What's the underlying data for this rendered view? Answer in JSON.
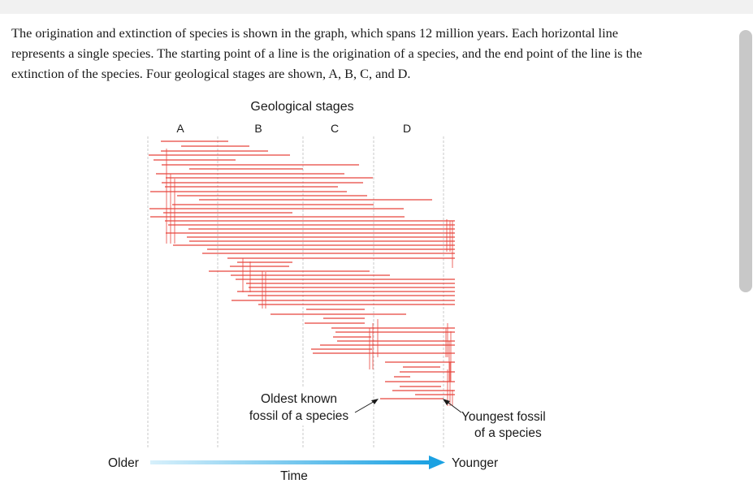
{
  "intro": {
    "line1": "The origination and extinction of species is shown in the graph, which spans 12 million years. Each horizontal line",
    "line2": "represents a single species. The starting point of a line is the origination of a species, and the end point of the line is the",
    "line3": "extinction of the species. Four geological stages are shown, A, B, C, and D."
  },
  "figure": {
    "title": "Geological stages",
    "stages": [
      "A",
      "B",
      "C",
      "D"
    ],
    "annotation_oldest_line1": "Oldest known",
    "annotation_oldest_line2": "fossil of a species",
    "annotation_youngest_line1": "Youngest fossil",
    "annotation_youngest_line2": "of a species",
    "axis_left": "Older",
    "axis_right": "Younger",
    "axis_label": "Time",
    "colors": {
      "species_line": "#e8453c",
      "arrow_start": "#d7f0fb",
      "arrow_end": "#1ba1e2",
      "boundary": "#c8c8c8"
    }
  }
}
